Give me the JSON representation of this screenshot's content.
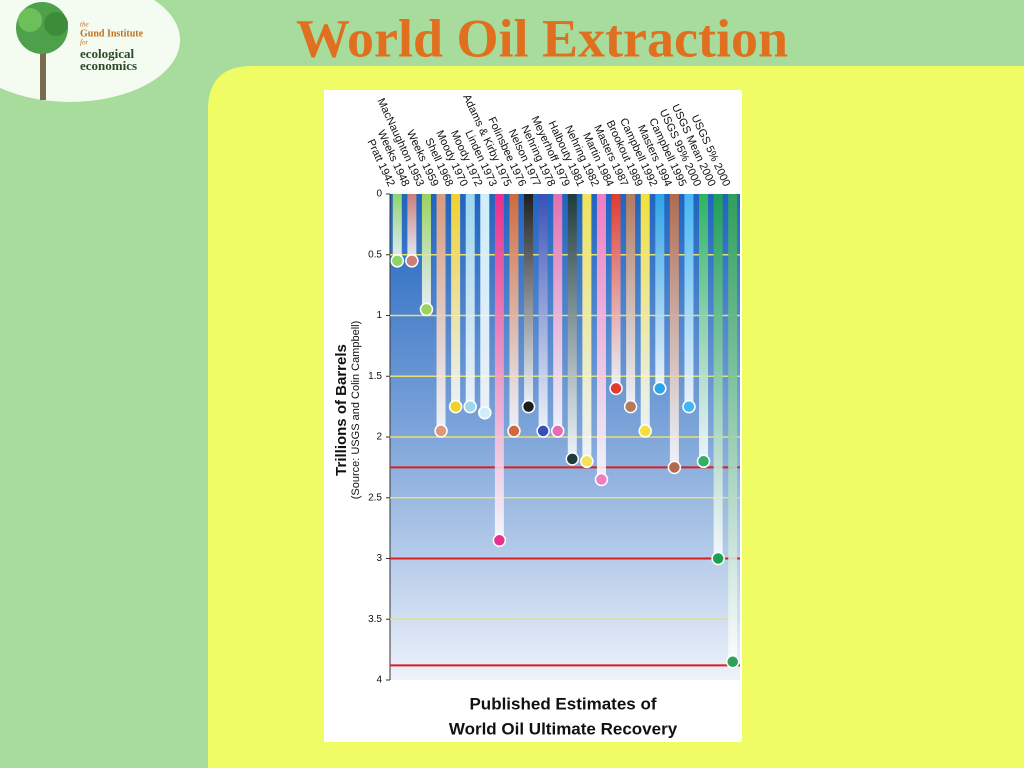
{
  "slide": {
    "title": "World Oil Extraction",
    "logo": {
      "the": "the",
      "name": "Gund Institute",
      "for": "for",
      "line1": "ecological",
      "line2": "economics"
    }
  },
  "chart_data": {
    "type": "bar",
    "title_lines": [
      "Published Estimates of",
      "World Oil Ultimate Recovery"
    ],
    "y_label": "Trillions of Barrels",
    "y_sublabel": "(Source: USGS and Colin Campbell)",
    "categories": [
      "Pratt 1942",
      "Weeks 1948",
      "MacNaughton 1953",
      "Weeks 1959",
      "Shell 1968",
      "Moody 1970",
      "Moody 1972",
      "Linden 1973",
      "Adams & Kirby 1975",
      "Folinsbee 1976",
      "Nelson 1977",
      "Nehring 1978",
      "Meyerhoff 1979",
      "Halbouty 1981",
      "Nehring 1982",
      "Martin 1984",
      "Masters 1987",
      "Brookout 1989",
      "Campbell 1992",
      "Masters 1994",
      "Campbell 1995",
      "USGS 95% 2000",
      "USGS Mean 2000",
      "USGS 5% 2000"
    ],
    "values": [
      0.55,
      0.55,
      0.95,
      1.95,
      1.75,
      1.75,
      1.8,
      2.85,
      1.95,
      1.75,
      1.95,
      1.95,
      2.18,
      2.2,
      2.35,
      1.6,
      1.75,
      1.95,
      1.6,
      2.25,
      1.75,
      2.2,
      3.0,
      3.85
    ],
    "colors": [
      "#8ed46a",
      "#c97e78",
      "#9bd35c",
      "#d99a7c",
      "#f2d12e",
      "#9fd7ef",
      "#cfeefc",
      "#e8308c",
      "#d06a3e",
      "#1e1e1e",
      "#3a4fb8",
      "#e46fb0",
      "#1f3b3b",
      "#f1e35a",
      "#f07cc2",
      "#e23a2e",
      "#b47a5c",
      "#f3e03a",
      "#2ea3e8",
      "#b26a4e",
      "#46b6f2",
      "#2fb263",
      "#1f9e55",
      "#2fa05a"
    ],
    "ylim": [
      0,
      4
    ],
    "y_inverted": true,
    "yticks": [
      0,
      0.5,
      1,
      1.5,
      2,
      2.5,
      3,
      3.5,
      4
    ],
    "grid": true,
    "grid_color": "#e8e070",
    "reference_lines": [
      2.25,
      3,
      3.88
    ],
    "reference_color": "#d82020"
  }
}
